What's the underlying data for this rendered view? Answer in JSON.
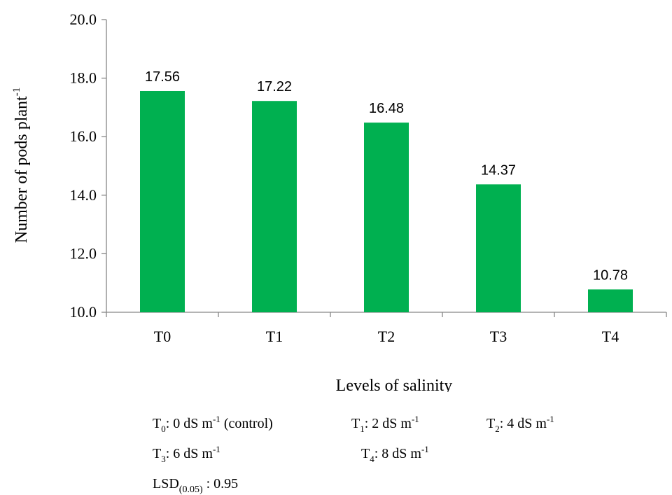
{
  "chart_data": {
    "type": "bar",
    "categories": [
      "T0",
      "T1",
      "T2",
      "T3",
      "T4"
    ],
    "values": [
      17.56,
      17.22,
      16.48,
      14.37,
      10.78
    ],
    "data_labels": [
      "17.56",
      "17.22",
      "16.48",
      "14.37",
      "10.78"
    ],
    "ylabel": "Number of pods plant",
    "ylabel_sup": "-1",
    "xlabel": "Levels of salinity",
    "ylim": [
      10.0,
      20.0
    ],
    "yticks": [
      "10.0",
      "12.0",
      "14.0",
      "16.0",
      "18.0",
      "20.0"
    ],
    "ytick_values": [
      10,
      12,
      14,
      16,
      18,
      20
    ],
    "bar_color": "#00b050",
    "grid": false,
    "legend": "none"
  },
  "notes": {
    "t0": {
      "base": "T",
      "sub": "0",
      "mid": ": 0 dS m",
      "sup": "-1",
      "tail": " (control)"
    },
    "t1": {
      "base": "T",
      "sub": "1",
      "mid": ": 2 dS m",
      "sup": "-1"
    },
    "t2": {
      "base": "T",
      "sub": "2",
      "mid": ": 4 dS m",
      "sup": "-1"
    },
    "t3": {
      "base": "T",
      "sub": "3",
      "mid": ": 6 dS m",
      "sup": "-1"
    },
    "t4": {
      "base": "T",
      "sub": "4",
      "mid": ": 8 dS m",
      "sup": "-1"
    },
    "lsd": {
      "base": "LSD",
      "sub": "(0.05)",
      "tail": " : 0.95"
    }
  }
}
